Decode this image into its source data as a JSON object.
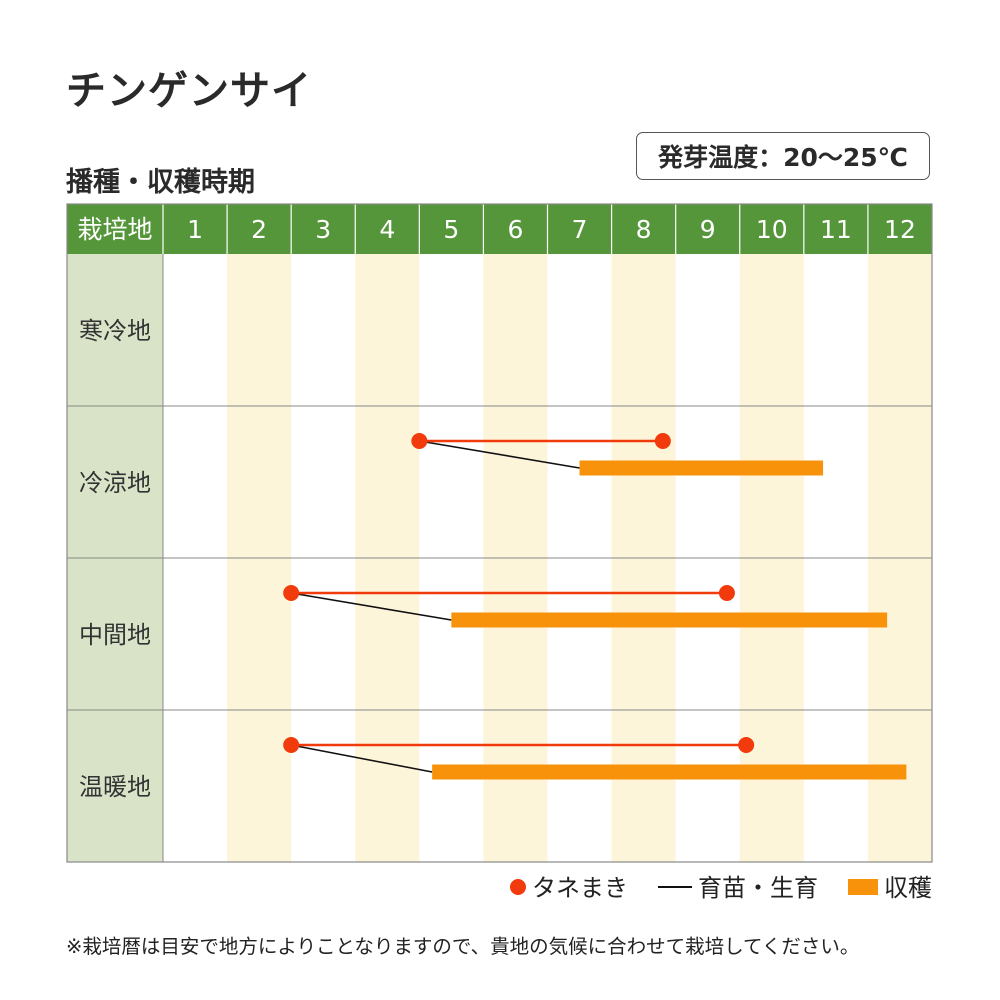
{
  "header": {
    "title": "チンゲンサイ",
    "subtitle": "播種・収穫時期",
    "germination_temp": "発芽温度：20～25℃"
  },
  "colors": {
    "header_green": "#56963a",
    "label_bg": "#d9e3c8",
    "stripe": "#fdf5da",
    "grid": "#888888",
    "sowing": "#f23b0c",
    "growing": "#111111",
    "harvest": "#f7920a"
  },
  "chart_data": {
    "type": "gantt",
    "corner_label": "栽培地",
    "months": [
      "1",
      "2",
      "3",
      "4",
      "5",
      "6",
      "7",
      "8",
      "9",
      "10",
      "11",
      "12"
    ],
    "regions": [
      {
        "name": "寒冷地",
        "sowing": null,
        "harvest": null
      },
      {
        "name": "冷涼地",
        "sowing": [
          5.0,
          8.8
        ],
        "growth_from": 5.0,
        "harvest": [
          7.5,
          11.3
        ]
      },
      {
        "name": "中間地",
        "sowing": [
          3.0,
          9.8
        ],
        "growth_from": 3.0,
        "harvest": [
          5.5,
          12.3
        ]
      },
      {
        "name": "温暖地",
        "sowing": [
          3.0,
          10.1
        ],
        "growth_from": 3.0,
        "harvest": [
          5.2,
          12.6
        ]
      }
    ],
    "legend": {
      "sowing": "タネまき",
      "growing": "育苗・生育",
      "harvest": "収穫"
    }
  },
  "footer": {
    "note": "※栽培暦は目安で地方によりことなりますので、貴地の気候に合わせて栽培してください。"
  }
}
